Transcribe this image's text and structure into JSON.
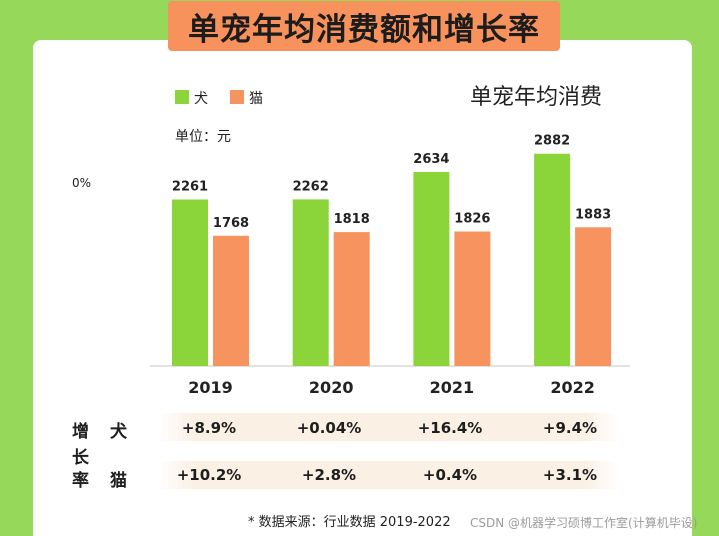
{
  "banner_title": "单宠年均消费额和增长率",
  "unit_label": "单位：元",
  "stray_axis_label": "0%",
  "colors": {
    "dog": "#8bd43a",
    "cat": "#f7935e",
    "background": "#96d85a",
    "banner": "#f7925d"
  },
  "chart_data": {
    "type": "bar",
    "title": "单宠年均消费",
    "categories": [
      "2019",
      "2020",
      "2021",
      "2022"
    ],
    "series": [
      {
        "name": "犬",
        "values": [
          2261,
          2262,
          2634,
          2882
        ]
      },
      {
        "name": "猫",
        "values": [
          1768,
          1818,
          1826,
          1883
        ]
      }
    ],
    "ylabel": "单位：元",
    "ylim": [
      0,
      3200
    ],
    "legend_position": "top-left",
    "grid": false
  },
  "growth_table": {
    "group_label": "增长率",
    "rows": [
      {
        "label": "犬",
        "values": [
          "+8.9%",
          "+0.04%",
          "+16.4%",
          "+9.4%"
        ]
      },
      {
        "label": "猫",
        "values": [
          "+10.2%",
          "+2.8%",
          "+0.4%",
          "+3.1%"
        ]
      }
    ]
  },
  "source_note": "* 数据来源：行业数据 2019-2022",
  "watermark": "CSDN @机器学习硕博工作室(计算机毕设)"
}
